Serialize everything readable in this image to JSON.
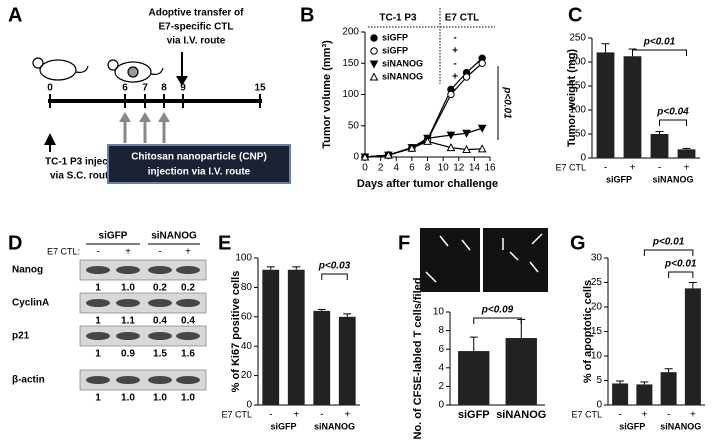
{
  "panel_labels": [
    "A",
    "B",
    "C",
    "D",
    "E",
    "F",
    "G"
  ],
  "diagram": {
    "transfer_label": [
      "Adoptive transfer of",
      "E7-specific CTL",
      "via I.V. route"
    ],
    "timeline": [
      0,
      6,
      7,
      8,
      9,
      15
    ],
    "injection_label": [
      "TC-1 P3 injection",
      "via S.C. route"
    ],
    "cnp_label": [
      "Chitosan nanoparticle (CNP)",
      "injection via I.V. route"
    ]
  },
  "blot": {
    "groups": [
      "siGFP",
      "siNANOG"
    ],
    "row_label": "E7 CTL:",
    "lanes": [
      "-",
      "+",
      "-",
      "+"
    ],
    "rows": [
      {
        "name": "Nanog",
        "values": [
          "1",
          "1.0",
          "0.2",
          "0.2"
        ]
      },
      {
        "name": "CyclinA",
        "values": [
          "1",
          "1.1",
          "0.4",
          "0.4"
        ]
      },
      {
        "name": "p21",
        "values": [
          "1",
          "0.9",
          "1.5",
          "1.6"
        ]
      },
      {
        "name": "β-actin",
        "values": [
          "1",
          "1.0",
          "1.0",
          "1.0"
        ]
      }
    ]
  },
  "chart_data": [
    {
      "type": "line",
      "x_label": "Days after tumor challenge",
      "y_label": "Tumor volume (mm³)",
      "x": [
        0,
        3,
        6,
        8,
        11,
        13,
        15
      ],
      "xlim": [
        0,
        16
      ],
      "xticks": [
        0,
        2,
        4,
        6,
        8,
        10,
        12,
        14,
        16
      ],
      "ylim": [
        0,
        200
      ],
      "yticks": [
        0,
        50,
        100,
        150,
        200
      ],
      "legend_headers": [
        "TC-1 P3",
        "E7 CTL"
      ],
      "annotations": [
        "p<0.01"
      ],
      "series": [
        {
          "name": "siGFP",
          "ctl": "-",
          "marker": "circle",
          "filled": true,
          "color": "#000",
          "values": [
            0,
            3,
            15,
            28,
            108,
            135,
            158
          ]
        },
        {
          "name": "siGFP",
          "ctl": "+",
          "marker": "circle",
          "filled": false,
          "color": "#000",
          "values": [
            0,
            3,
            14,
            27,
            100,
            128,
            150
          ]
        },
        {
          "name": "siNANOG",
          "ctl": "-",
          "marker": "triangle-down",
          "filled": true,
          "color": "#000",
          "values": [
            0,
            3,
            15,
            30,
            35,
            38,
            46
          ]
        },
        {
          "name": "siNANOG",
          "ctl": "+",
          "marker": "triangle-up",
          "filled": false,
          "color": "#000",
          "values": [
            0,
            3,
            14,
            25,
            15,
            12,
            13
          ]
        }
      ]
    },
    {
      "type": "bar",
      "y_label": "Tumor weight (mg)",
      "row_label": "E7 CTL",
      "categories": [
        "-",
        "+",
        "-",
        "+"
      ],
      "groups": [
        "siGFP",
        "siNANOG"
      ],
      "values": [
        220,
        212,
        50,
        18
      ],
      "errors": [
        18,
        15,
        5,
        2
      ],
      "color": "#222",
      "ylim": [
        0,
        250
      ],
      "yticks": [
        0,
        50,
        100,
        150,
        200,
        250
      ],
      "annotations": [
        "p<0.01",
        "p<0.04"
      ]
    },
    {
      "type": "bar",
      "y_label": "% of Ki67 positive cells",
      "row_label": "E7 CTL",
      "categories": [
        "-",
        "+",
        "-",
        "+"
      ],
      "groups": [
        "siGFP",
        "siNANOG"
      ],
      "values": [
        92,
        92,
        64,
        60
      ],
      "errors": [
        2,
        2,
        1,
        2
      ],
      "color": "#222",
      "ylim": [
        0,
        100
      ],
      "yticks": [
        0,
        20,
        40,
        60,
        80,
        100
      ],
      "annotations": [
        "p<0.03"
      ]
    },
    {
      "type": "bar",
      "y_label": "No. of CFSE-labled T cells/filed",
      "categories": [
        "siGFP",
        "siNANOG"
      ],
      "values": [
        5.8,
        7.2
      ],
      "errors": [
        1.5,
        2
      ],
      "color": "#222",
      "ylim": [
        0,
        10
      ],
      "yticks": [
        0,
        2,
        4,
        6,
        8,
        10
      ],
      "annotations": [
        "p<0.09"
      ]
    },
    {
      "type": "bar",
      "y_label": "% of apoptotic cells",
      "row_label": "E7 CTL",
      "categories": [
        "-",
        "+",
        "-",
        "+"
      ],
      "groups": [
        "siGFP",
        "siNANOG"
      ],
      "values": [
        4.4,
        4.2,
        6.7,
        23.8
      ],
      "errors": [
        0.5,
        0.5,
        0.7,
        1.2
      ],
      "color": "#222",
      "ylim": [
        0,
        30
      ],
      "yticks": [
        0,
        5,
        10,
        15,
        20,
        25,
        30
      ],
      "annotations": [
        "p<0.01",
        "p<0.01"
      ]
    }
  ]
}
